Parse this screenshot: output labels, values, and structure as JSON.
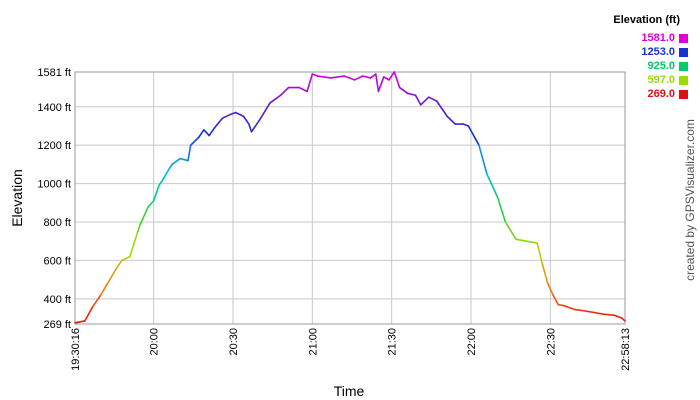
{
  "chart_data": {
    "type": "line",
    "title": "",
    "xlabel": "Time",
    "ylabel": "Elevation",
    "x_ticks": [
      "19:30:16",
      "20:00",
      "20:30",
      "21:00",
      "21:30",
      "22:00",
      "22:30",
      "22:58:13"
    ],
    "x_tick_minutes": [
      0,
      29.73,
      59.73,
      89.73,
      119.73,
      149.73,
      179.73,
      207.95
    ],
    "xlim": [
      0,
      207.95
    ],
    "y_ticks": [
      "269 ft",
      "400 ft",
      "600 ft",
      "800 ft",
      "1000 ft",
      "1200 ft",
      "1400 ft",
      "1581 ft"
    ],
    "y_tick_values": [
      269,
      400,
      600,
      800,
      1000,
      1200,
      1400,
      1581
    ],
    "ylim": [
      269,
      1581
    ],
    "grid": true,
    "series": [
      {
        "x": [
          "19:30:16",
          "19:34",
          "19:37",
          "19:40",
          "19:43",
          "19:46",
          "19:48",
          "19:51",
          "19:54",
          "19:55",
          "19:58",
          "20:00",
          "20:02",
          "20:03",
          "20:06",
          "20:07",
          "20:10",
          "20:13",
          "20:14",
          "20:17",
          "20:19",
          "20:21",
          "20:23",
          "20:26",
          "20:29",
          "20:31",
          "20:34",
          "20:36",
          "20:37",
          "20:40",
          "20:44",
          "20:48",
          "20:51",
          "20:55",
          "20:58",
          "21:00",
          "21:02",
          "21:07",
          "21:12",
          "21:16",
          "21:19",
          "21:22",
          "21:24",
          "21:25",
          "21:27",
          "21:29",
          "21:31",
          "21:33",
          "21:36",
          "21:39",
          "21:41",
          "21:44",
          "21:47",
          "21:51",
          "21:54",
          "21:57",
          "21:59",
          "22:03",
          "22:06",
          "22:10",
          "22:13",
          "22:17",
          "22:21",
          "22:25",
          "22:27",
          "22:29",
          "22:31",
          "22:33",
          "22:35",
          "22:39",
          "22:44",
          "22:50",
          "22:54",
          "22:57",
          "22:58:13"
        ],
        "y": [
          275,
          285,
          360,
          420,
          490,
          560,
          600,
          620,
          750,
          790,
          880,
          910,
          990,
          1010,
          1080,
          1100,
          1130,
          1120,
          1200,
          1240,
          1280,
          1250,
          1290,
          1340,
          1360,
          1370,
          1350,
          1310,
          1270,
          1330,
          1420,
          1460,
          1500,
          1500,
          1480,
          1570,
          1560,
          1550,
          1560,
          1540,
          1560,
          1550,
          1570,
          1480,
          1555,
          1540,
          1581,
          1500,
          1470,
          1460,
          1410,
          1450,
          1430,
          1350,
          1310,
          1310,
          1300,
          1200,
          1050,
          930,
          800,
          710,
          700,
          690,
          580,
          480,
          420,
          370,
          365,
          345,
          335,
          320,
          315,
          300,
          285
        ]
      }
    ]
  },
  "legend": {
    "title": "Elevation (ft)",
    "entries": [
      {
        "label": "1581.0",
        "color": "#dd00dd"
      },
      {
        "label": "1253.0",
        "color": "#1a33cc"
      },
      {
        "label": "925.0",
        "color": "#00cc66"
      },
      {
        "label": "597.0",
        "color": "#99dd00"
      },
      {
        "label": "269.0",
        "color": "#dd1111"
      }
    ]
  },
  "credit": "created by GPSVisualizer.com"
}
